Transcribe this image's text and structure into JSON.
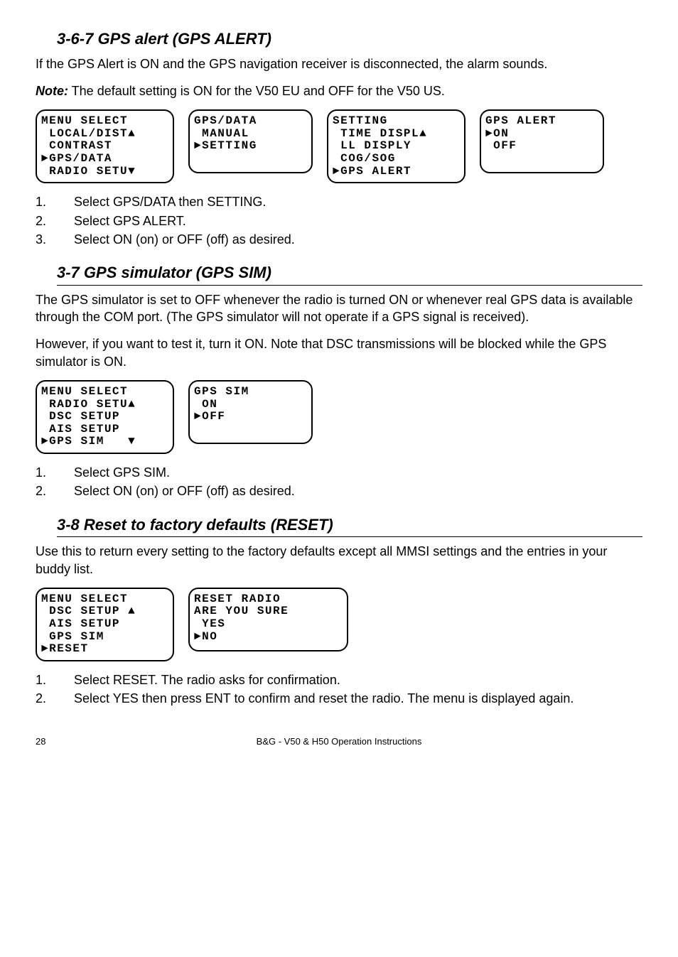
{
  "section_367": {
    "title": "3-6-7 GPS alert (GPS ALERT)",
    "intro": "If the GPS Alert is ON and the GPS navigation receiver is disconnected, the alarm sounds.",
    "note_label": "Note:",
    "note_text": " The default setting is ON for the V50 EU and OFF for the V50 US.",
    "lcds": [
      [
        "MENU SELECT",
        " LOCAL/DIST▲",
        " CONTRAST",
        "►GPS/DATA",
        " RADIO SETU▼"
      ],
      [
        "GPS/DATA",
        " MANUAL",
        "►SETTING"
      ],
      [
        "SETTING",
        " TIME DISPL▲",
        " LL DISPLY",
        " COG/SOG",
        "►GPS ALERT"
      ],
      [
        "GPS ALERT",
        "►ON",
        " OFF"
      ]
    ],
    "steps": [
      "Select GPS/DATA then SETTING.",
      "Select GPS ALERT.",
      "Select ON (on) or OFF (off) as desired."
    ]
  },
  "section_37": {
    "title": "3-7 GPS simulator (GPS SIM)",
    "para1": "The GPS simulator is set to OFF whenever the radio is turned ON or whenever real GPS data is available through the COM port. (The GPS simulator will not operate if a GPS signal is received).",
    "para2": "However, if you want to test it, turn it ON. Note that DSC transmissions will be blocked while the GPS simulator is ON.",
    "lcds": [
      [
        "MENU SELECT",
        " RADIO SETU▲",
        " DSC SETUP",
        " AIS SETUP",
        "►GPS SIM   ▼"
      ],
      [
        "GPS SIM",
        " ON",
        "►OFF"
      ]
    ],
    "steps": [
      "Select GPS SIM.",
      "Select ON (on) or OFF (off) as desired."
    ]
  },
  "section_38": {
    "title": "3-8 Reset to factory defaults (RESET)",
    "para1": "Use this to return every setting to the factory defaults except all MMSI settings and the entries in your buddy list.",
    "lcds": [
      [
        "MENU SELECT",
        " DSC SETUP ▲",
        " AIS SETUP",
        " GPS SIM",
        "►RESET"
      ],
      [
        "RESET RADIO",
        "ARE YOU SURE",
        " YES",
        "►NO"
      ]
    ],
    "steps": [
      "Select RESET.  The radio asks for confirmation.",
      "Select YES then press ENT to confirm and reset the radio. The menu is displayed again."
    ]
  },
  "footer": {
    "page": "28",
    "center": "B&G - V50 & H50 Operation Instructions"
  }
}
